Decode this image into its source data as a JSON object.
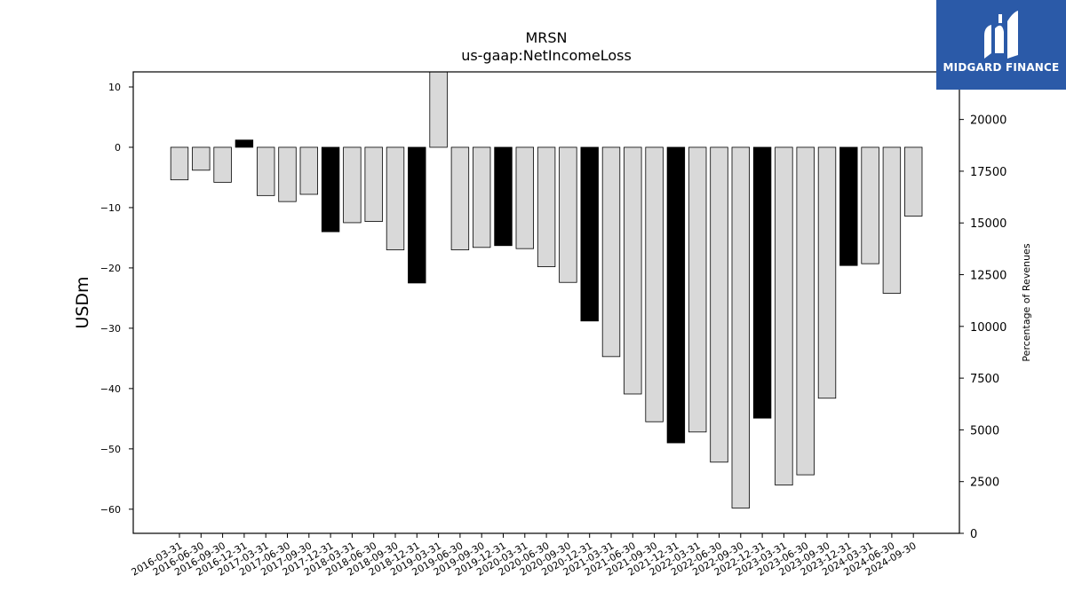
{
  "chart_data": {
    "type": "bar",
    "title": "MRSN",
    "subtitle": "us-gaap:NetIncomeLoss",
    "ylabel": "USDm",
    "y2label": "Percentage of Revenues",
    "ylim": [
      -64,
      12.5
    ],
    "y2lim": [
      0,
      22300
    ],
    "yticks": [
      10,
      0,
      -10,
      -20,
      -30,
      -40,
      -50,
      -60
    ],
    "y2ticks": [
      20000,
      17500,
      15000,
      12500,
      10000,
      7500,
      5000,
      2500,
      0
    ],
    "grid": false,
    "colors": {
      "quarter": "#d9d9d9",
      "year_end": "#000000",
      "edge": "#000000"
    },
    "categories": [
      "2016-03-31",
      "2016-06-30",
      "2016-09-30",
      "2016-12-31",
      "2017-03-31",
      "2017-06-30",
      "2017-09-30",
      "2017-12-31",
      "2018-03-31",
      "2018-06-30",
      "2018-09-30",
      "2018-12-31",
      "2019-03-31",
      "2019-06-30",
      "2019-09-30",
      "2019-12-31",
      "2020-03-31",
      "2020-06-30",
      "2020-09-30",
      "2020-12-31",
      "2021-03-31",
      "2021-06-30",
      "2021-09-30",
      "2021-12-31",
      "2022-03-31",
      "2022-06-30",
      "2022-09-30",
      "2022-12-31",
      "2023-03-31",
      "2023-06-30",
      "2023-09-30",
      "2023-12-31",
      "2024-03-31",
      "2024-06-30",
      "2024-09-30"
    ],
    "values": [
      -5.4,
      -3.8,
      -5.8,
      1.2,
      -8.0,
      -9.0,
      -7.8,
      -14.0,
      -12.5,
      -12.3,
      -17.0,
      -22.5,
      13.0,
      -17.0,
      -16.6,
      -16.3,
      -16.8,
      -19.8,
      -22.4,
      -28.8,
      -34.7,
      -40.9,
      -45.5,
      -49.0,
      -47.2,
      -52.2,
      -59.8,
      -44.9,
      -56.0,
      -54.3,
      -41.6,
      -19.6,
      -19.3,
      -24.2,
      -11.4
    ],
    "highlight": [
      false,
      false,
      false,
      true,
      false,
      false,
      false,
      true,
      false,
      false,
      false,
      true,
      false,
      false,
      false,
      true,
      false,
      false,
      false,
      true,
      false,
      false,
      false,
      true,
      false,
      false,
      false,
      true,
      false,
      false,
      false,
      true,
      false,
      false,
      false
    ]
  },
  "logo": {
    "text": "MIDGARD FINANCE",
    "icon": "midgard-logo-icon"
  }
}
